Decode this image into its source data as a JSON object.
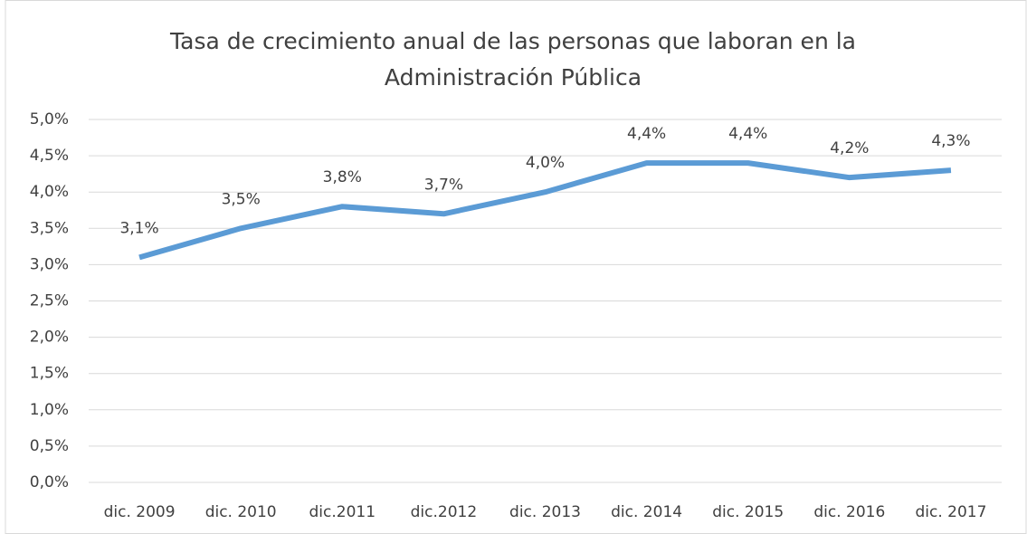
{
  "chart_data": {
    "type": "line",
    "title": "Tasa de crecimiento anual de las personas que laboran en la Administración Pública",
    "categories": [
      "dic. 2009",
      "dic. 2010",
      "dic.2011",
      "dic.2012",
      "dic. 2013",
      "dic. 2014",
      "dic. 2015",
      "dic. 2016",
      "dic. 2017"
    ],
    "values": [
      3.1,
      3.5,
      3.8,
      3.7,
      4.0,
      4.4,
      4.4,
      4.2,
      4.3
    ],
    "value_labels": [
      "3,1%",
      "3,5%",
      "3,8%",
      "3,7%",
      "4,0%",
      "4,4%",
      "4,4%",
      "4,2%",
      "4,3%"
    ],
    "color": "#5b9bd5",
    "ylim": [
      0,
      5
    ],
    "yticks": [
      {
        "value": 0,
        "label": "0,0%"
      },
      {
        "value": 0.5,
        "label": "0,5%"
      },
      {
        "value": 1,
        "label": "1,0%"
      },
      {
        "value": 1.5,
        "label": "1,5%"
      },
      {
        "value": 2,
        "label": "2,0%"
      },
      {
        "value": 2.5,
        "label": "2,5%"
      },
      {
        "value": 3,
        "label": "3,0%"
      },
      {
        "value": 3.5,
        "label": "3,5%"
      },
      {
        "value": 4,
        "label": "4,0%"
      },
      {
        "value": 4.5,
        "label": "4,5%"
      },
      {
        "value": 5,
        "label": "5,0%"
      }
    ],
    "grid": true
  }
}
